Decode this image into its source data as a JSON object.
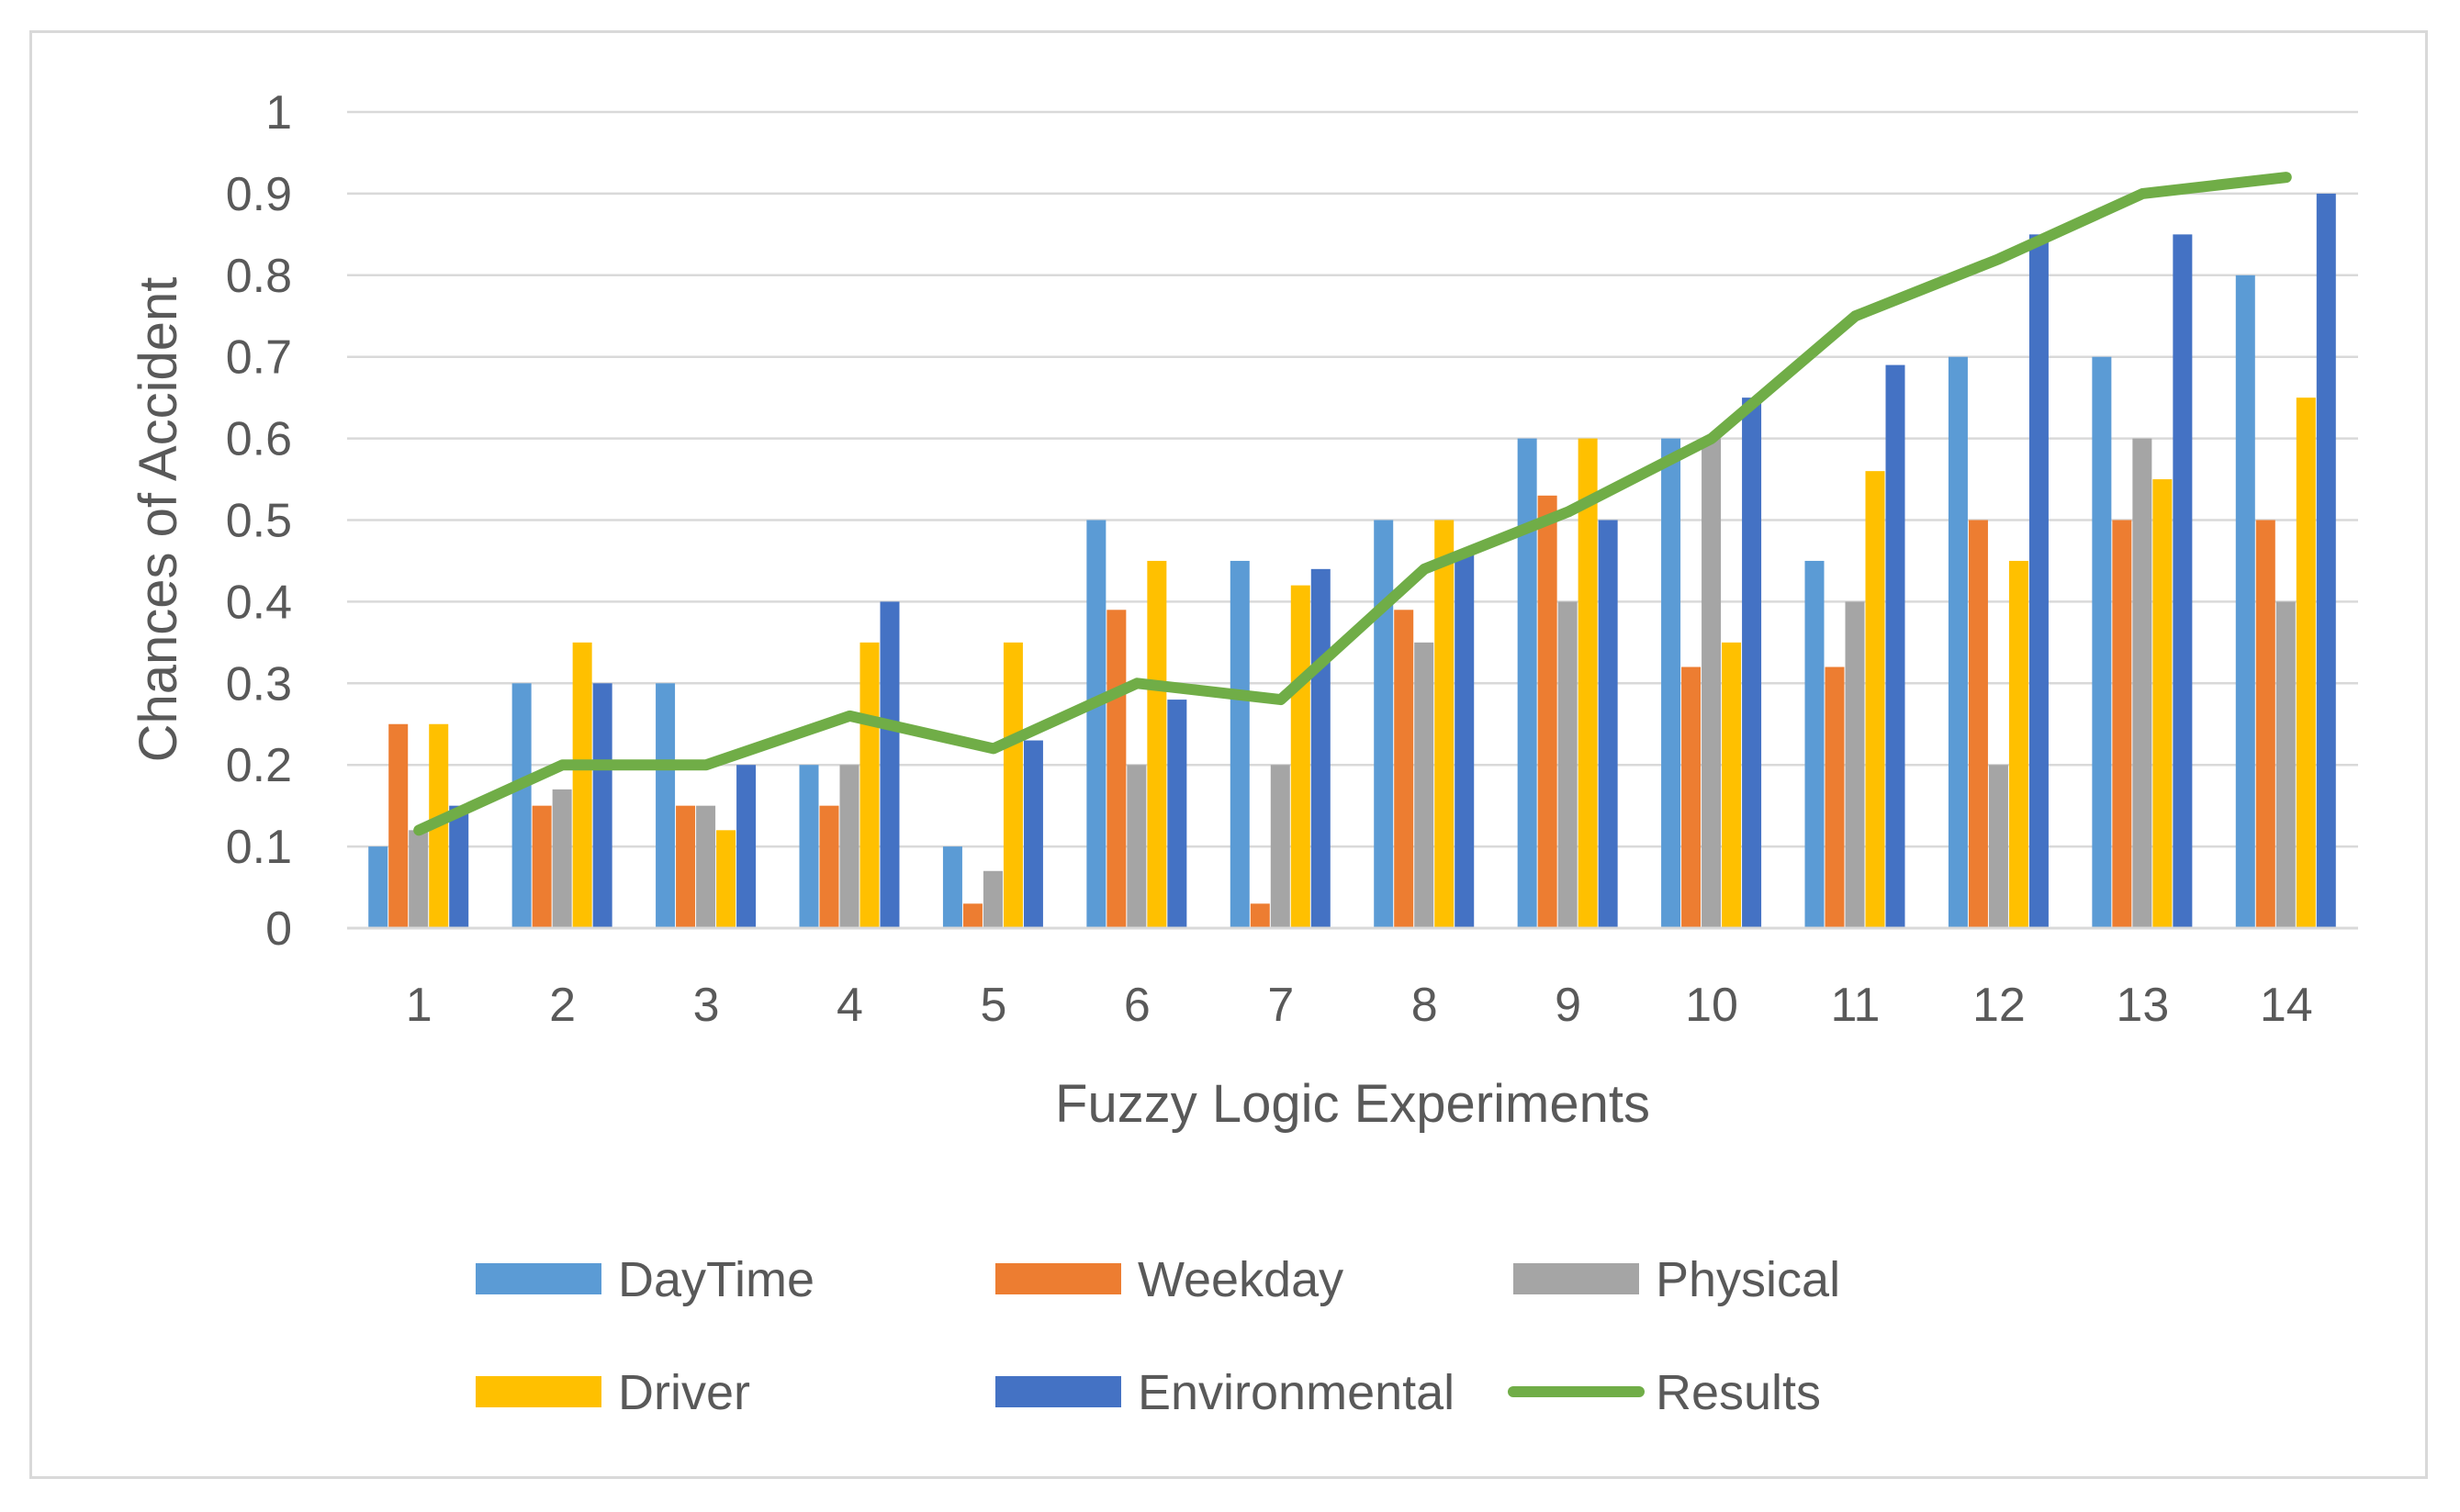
{
  "chart_data": {
    "type": "bar",
    "title": "",
    "xlabel": "Fuzzy Logic Experiments",
    "ylabel": "Chances of Accident",
    "ylim": [
      0,
      1
    ],
    "yticks": [
      "0",
      "0.1",
      "0.2",
      "0.3",
      "0.4",
      "0.5",
      "0.6",
      "0.7",
      "0.8",
      "0.9",
      "1"
    ],
    "grid": true,
    "legend_position": "bottom",
    "categories": [
      "1",
      "2",
      "3",
      "4",
      "5",
      "6",
      "7",
      "8",
      "9",
      "10",
      "11",
      "12",
      "13",
      "14"
    ],
    "series": [
      {
        "name": "DayTime",
        "kind": "bar",
        "color": "#5b9bd5",
        "values": [
          0.1,
          0.3,
          0.3,
          0.2,
          0.1,
          0.5,
          0.45,
          0.5,
          0.6,
          0.6,
          0.45,
          0.7,
          0.7,
          0.8
        ]
      },
      {
        "name": "Weekday",
        "kind": "bar",
        "color": "#ed7d31",
        "values": [
          0.25,
          0.15,
          0.15,
          0.15,
          0.03,
          0.39,
          0.03,
          0.39,
          0.53,
          0.32,
          0.32,
          0.5,
          0.5,
          0.5
        ]
      },
      {
        "name": "Physical",
        "kind": "bar",
        "color": "#a5a5a5",
        "values": [
          0.12,
          0.17,
          0.15,
          0.2,
          0.07,
          0.2,
          0.2,
          0.35,
          0.4,
          0.6,
          0.4,
          0.2,
          0.6,
          0.4
        ]
      },
      {
        "name": "Driver",
        "kind": "bar",
        "color": "#ffc000",
        "values": [
          0.25,
          0.35,
          0.12,
          0.35,
          0.35,
          0.45,
          0.42,
          0.5,
          0.6,
          0.35,
          0.56,
          0.45,
          0.55,
          0.65
        ]
      },
      {
        "name": "Environmental",
        "kind": "bar",
        "color": "#4472c4",
        "values": [
          0.15,
          0.3,
          0.2,
          0.4,
          0.23,
          0.28,
          0.44,
          0.46,
          0.5,
          0.65,
          0.69,
          0.85,
          0.85,
          0.9
        ]
      },
      {
        "name": "Results",
        "kind": "line",
        "color": "#70ad47",
        "values": [
          0.12,
          0.2,
          0.2,
          0.26,
          0.22,
          0.3,
          0.28,
          0.44,
          0.51,
          0.6,
          0.75,
          0.82,
          0.9,
          0.92
        ]
      }
    ]
  }
}
